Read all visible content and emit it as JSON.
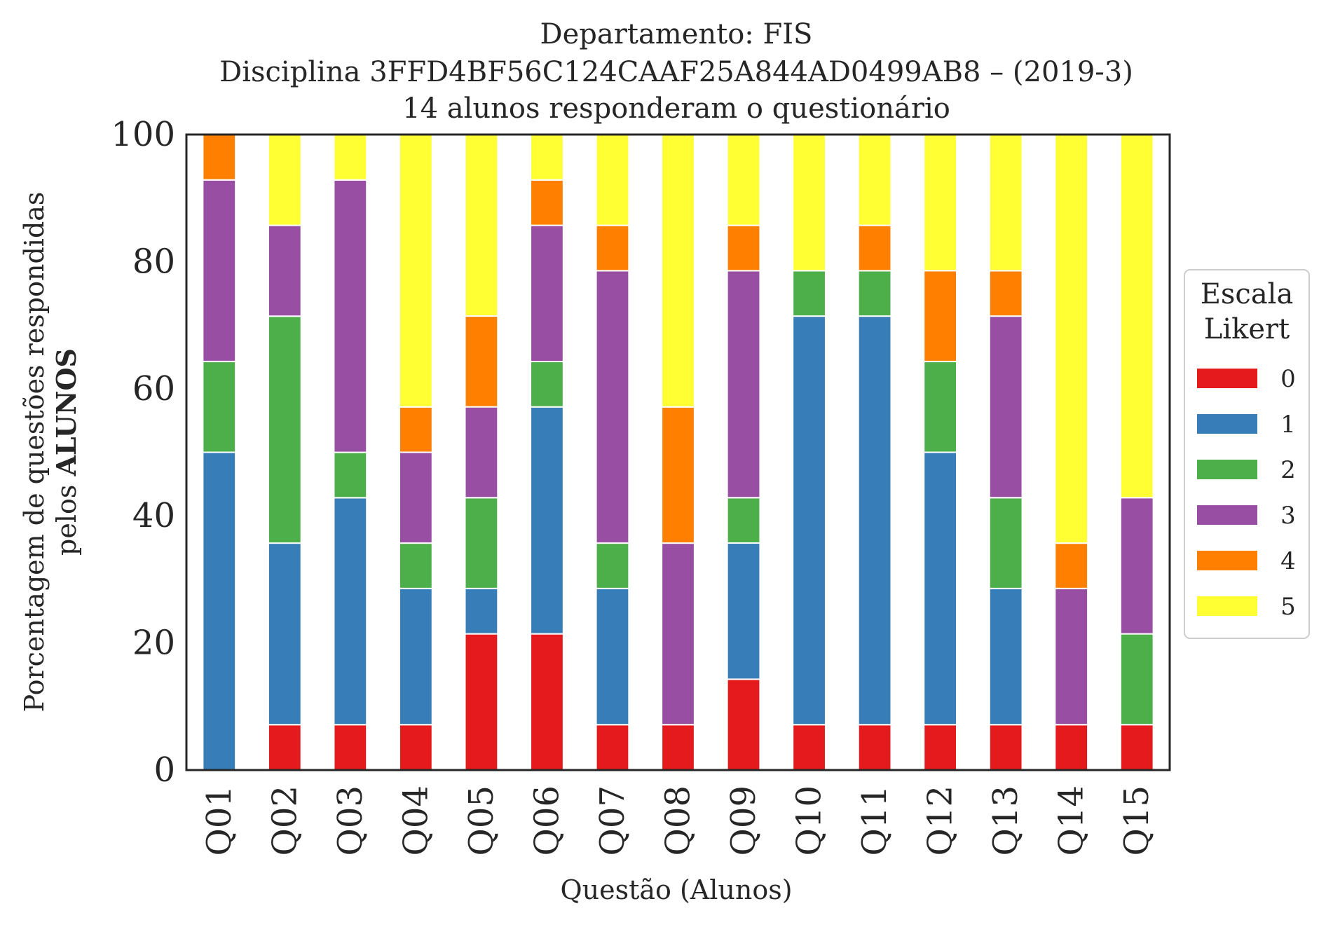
{
  "chart_data": {
    "type": "bar",
    "stacked": true,
    "title_lines": [
      "Departamento: FIS",
      "Disciplina 3FFD4BF56C124CAAF25A844AD0499AB8 – (2019-3)",
      "14 alunos responderam o questionário"
    ],
    "xlabel": "Questão (Alunos)",
    "ylabel_line1": "Porcentagem de questões respondidas",
    "ylabel_line2_normal": "pelos ",
    "ylabel_line2_bold": "ALUNOS",
    "ylim": [
      0,
      100
    ],
    "yticks": [
      "0",
      "20",
      "40",
      "60",
      "80",
      "100"
    ],
    "categories": [
      "Q01",
      "Q02",
      "Q03",
      "Q04",
      "Q05",
      "Q06",
      "Q07",
      "Q08",
      "Q09",
      "Q10",
      "Q11",
      "Q12",
      "Q13",
      "Q14",
      "Q15"
    ],
    "legend_title_lines": [
      "Escala",
      "Likert"
    ],
    "legend_position": "center-right",
    "series": [
      {
        "name": "0",
        "color": "#e41a1c",
        "values": [
          0,
          7.14,
          7.14,
          7.14,
          21.43,
          21.43,
          7.14,
          7.14,
          14.29,
          7.14,
          7.14,
          7.14,
          7.14,
          7.14,
          7.14
        ]
      },
      {
        "name": "1",
        "color": "#377eb8",
        "values": [
          50,
          28.57,
          35.71,
          21.43,
          7.14,
          35.71,
          21.43,
          0,
          21.43,
          64.29,
          64.29,
          42.86,
          21.43,
          0,
          0
        ]
      },
      {
        "name": "2",
        "color": "#4daf4a",
        "values": [
          14.29,
          35.71,
          7.14,
          7.14,
          14.29,
          7.14,
          7.14,
          0,
          7.14,
          7.14,
          7.14,
          14.29,
          14.29,
          0,
          14.29
        ]
      },
      {
        "name": "3",
        "color": "#984ea3",
        "values": [
          28.57,
          14.29,
          42.86,
          14.29,
          14.29,
          21.43,
          42.86,
          28.57,
          35.71,
          0,
          0,
          0,
          28.57,
          21.43,
          21.43
        ]
      },
      {
        "name": "4",
        "color": "#ff7f00",
        "values": [
          7.14,
          0,
          0,
          7.14,
          14.29,
          7.14,
          7.14,
          21.43,
          7.14,
          0,
          7.14,
          14.29,
          7.14,
          7.14,
          0
        ]
      },
      {
        "name": "5",
        "color": "#ffff33",
        "values": [
          0,
          14.29,
          7.14,
          42.86,
          28.57,
          7.14,
          14.29,
          42.86,
          14.29,
          21.43,
          14.29,
          21.43,
          21.43,
          64.29,
          57.14
        ]
      }
    ]
  }
}
